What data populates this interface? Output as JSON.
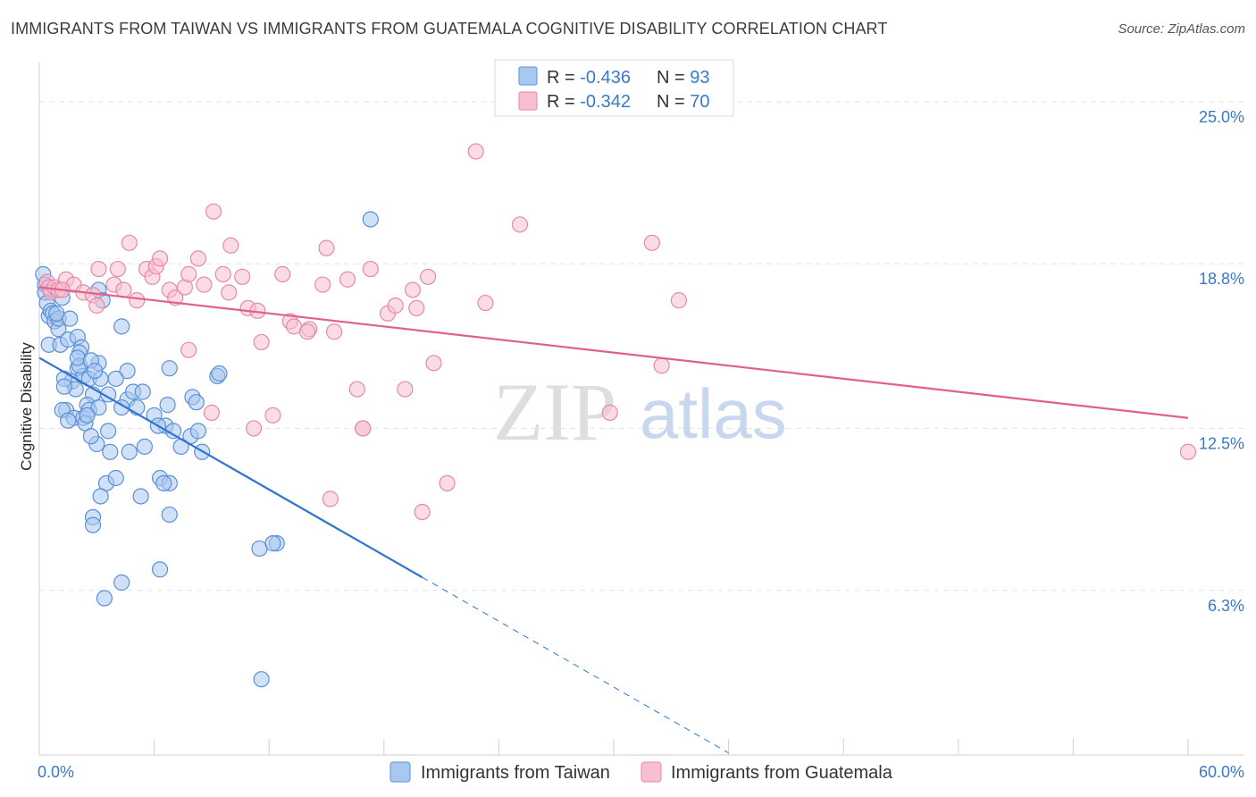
{
  "header": {
    "title": "IMMIGRANTS FROM TAIWAN VS IMMIGRANTS FROM GUATEMALA COGNITIVE DISABILITY CORRELATION CHART",
    "source": "Source: ZipAtlas.com"
  },
  "watermark": {
    "zip": "ZIP",
    "atlas": "atlas"
  },
  "colors": {
    "taiwan_fill": "#a9c8f0",
    "taiwan_stroke": "#5b8fd6",
    "taiwan_line": "#2f74d0",
    "guatemala_fill": "#f7bfd0",
    "guatemala_stroke": "#e58aa6",
    "guatemala_line": "#e0608a",
    "tick_text": "#3a78c9",
    "grid": "#e4e4e4"
  },
  "legend_top": {
    "rows": [
      {
        "r_label": "R = ",
        "r_value": "-0.436",
        "n_label": "N = ",
        "n_value": "93"
      },
      {
        "r_label": "R = ",
        "r_value": "-0.342",
        "n_label": "N = ",
        "n_value": "70"
      }
    ]
  },
  "chart_data": {
    "type": "scatter",
    "title": "IMMIGRANTS FROM TAIWAN VS IMMIGRANTS FROM GUATEMALA COGNITIVE DISABILITY CORRELATION CHART",
    "xlabel": "",
    "ylabel": "Cognitive Disability",
    "xlim": [
      0,
      60
    ],
    "ylim": [
      0,
      26.5
    ],
    "x_ticks": [
      {
        "value": 0,
        "label": "0.0%"
      },
      {
        "value": 60,
        "label": "60.0%"
      }
    ],
    "y_ticks": [
      {
        "value": 6.3,
        "label": "6.3%"
      },
      {
        "value": 12.5,
        "label": "12.5%"
      },
      {
        "value": 18.8,
        "label": "18.8%"
      },
      {
        "value": 25.0,
        "label": "25.0%"
      }
    ],
    "grid": true,
    "legend_position": "bottom",
    "series": [
      {
        "name": "Immigrants from Taiwan",
        "R": -0.436,
        "N": 93,
        "trend": {
          "x0": 0.0,
          "y0": 15.2,
          "x1": 20.0,
          "y1": 6.8,
          "dash_to_x": 36.0
        },
        "points": [
          [
            0.2,
            18.4
          ],
          [
            0.3,
            18.0
          ],
          [
            0.3,
            17.7
          ],
          [
            0.4,
            17.3
          ],
          [
            0.5,
            16.8
          ],
          [
            0.6,
            17.0
          ],
          [
            0.7,
            16.9
          ],
          [
            0.8,
            16.6
          ],
          [
            1.0,
            16.3
          ],
          [
            1.0,
            16.7
          ],
          [
            0.5,
            15.7
          ],
          [
            1.1,
            15.7
          ],
          [
            1.5,
            15.9
          ],
          [
            2.0,
            16.0
          ],
          [
            2.2,
            15.6
          ],
          [
            2.1,
            15.4
          ],
          [
            2.0,
            14.8
          ],
          [
            1.7,
            14.3
          ],
          [
            1.3,
            14.4
          ],
          [
            2.3,
            14.5
          ],
          [
            1.9,
            14.0
          ],
          [
            2.8,
            13.8
          ],
          [
            2.6,
            14.4
          ],
          [
            3.2,
            14.4
          ],
          [
            2.5,
            13.4
          ],
          [
            1.4,
            13.2
          ],
          [
            1.8,
            12.9
          ],
          [
            2.3,
            12.9
          ],
          [
            2.6,
            13.2
          ],
          [
            3.1,
            13.3
          ],
          [
            2.4,
            12.7
          ],
          [
            1.2,
            13.2
          ],
          [
            3.6,
            13.8
          ],
          [
            4.6,
            13.6
          ],
          [
            4.9,
            13.9
          ],
          [
            4.6,
            14.7
          ],
          [
            4.0,
            14.4
          ],
          [
            2.1,
            14.9
          ],
          [
            3.1,
            15.0
          ],
          [
            3.1,
            17.8
          ],
          [
            4.3,
            16.4
          ],
          [
            4.3,
            13.3
          ],
          [
            5.1,
            13.3
          ],
          [
            5.4,
            13.9
          ],
          [
            6.0,
            13.0
          ],
          [
            6.7,
            13.4
          ],
          [
            6.6,
            12.6
          ],
          [
            7.0,
            12.4
          ],
          [
            7.9,
            12.2
          ],
          [
            8.3,
            12.4
          ],
          [
            8.5,
            11.6
          ],
          [
            7.4,
            11.8
          ],
          [
            6.2,
            12.6
          ],
          [
            5.5,
            11.8
          ],
          [
            3.0,
            11.9
          ],
          [
            2.7,
            12.2
          ],
          [
            3.6,
            12.4
          ],
          [
            1.5,
            12.8
          ],
          [
            3.7,
            11.6
          ],
          [
            4.7,
            11.6
          ],
          [
            3.5,
            10.4
          ],
          [
            4.0,
            10.6
          ],
          [
            6.3,
            10.6
          ],
          [
            6.8,
            10.4
          ],
          [
            6.5,
            10.4
          ],
          [
            3.2,
            9.9
          ],
          [
            5.3,
            9.9
          ],
          [
            2.8,
            9.1
          ],
          [
            2.8,
            8.8
          ],
          [
            6.8,
            9.2
          ],
          [
            11.5,
            7.9
          ],
          [
            12.4,
            8.1
          ],
          [
            12.2,
            8.1
          ],
          [
            6.3,
            7.1
          ],
          [
            4.3,
            6.6
          ],
          [
            3.4,
            6.0
          ],
          [
            9.3,
            14.5
          ],
          [
            9.4,
            14.6
          ],
          [
            8.0,
            13.7
          ],
          [
            8.2,
            13.5
          ],
          [
            0.9,
            16.9
          ],
          [
            1.6,
            16.7
          ],
          [
            0.6,
            17.8
          ],
          [
            1.2,
            17.5
          ],
          [
            2.0,
            15.2
          ],
          [
            2.7,
            15.1
          ],
          [
            3.3,
            17.4
          ],
          [
            2.9,
            14.7
          ],
          [
            1.3,
            14.1
          ],
          [
            2.5,
            13.0
          ],
          [
            11.6,
            2.9
          ],
          [
            17.3,
            20.5
          ],
          [
            6.8,
            14.8
          ]
        ]
      },
      {
        "name": "Immigrants from Guatemala",
        "R": -0.342,
        "N": 70,
        "trend": {
          "x0": 0.0,
          "y0": 17.9,
          "x1": 60.0,
          "y1": 12.9
        },
        "points": [
          [
            0.4,
            18.1
          ],
          [
            0.5,
            17.9
          ],
          [
            0.6,
            17.7
          ],
          [
            0.8,
            17.9
          ],
          [
            1.0,
            17.8
          ],
          [
            1.4,
            18.2
          ],
          [
            1.8,
            18.0
          ],
          [
            2.3,
            17.7
          ],
          [
            2.8,
            17.6
          ],
          [
            3.0,
            17.2
          ],
          [
            3.1,
            18.6
          ],
          [
            3.9,
            18.0
          ],
          [
            4.1,
            18.6
          ],
          [
            4.4,
            17.8
          ],
          [
            4.7,
            19.6
          ],
          [
            5.1,
            17.4
          ],
          [
            5.6,
            18.6
          ],
          [
            5.9,
            18.3
          ],
          [
            6.1,
            18.7
          ],
          [
            6.3,
            19.0
          ],
          [
            6.8,
            17.8
          ],
          [
            7.1,
            17.5
          ],
          [
            7.6,
            17.9
          ],
          [
            7.8,
            18.4
          ],
          [
            8.3,
            19.0
          ],
          [
            8.6,
            18.0
          ],
          [
            9.1,
            20.8
          ],
          [
            9.6,
            18.4
          ],
          [
            9.9,
            17.7
          ],
          [
            10.0,
            19.5
          ],
          [
            10.6,
            18.3
          ],
          [
            10.9,
            17.1
          ],
          [
            11.4,
            17.0
          ],
          [
            11.6,
            15.8
          ],
          [
            12.2,
            13.0
          ],
          [
            12.7,
            18.4
          ],
          [
            13.1,
            16.6
          ],
          [
            13.3,
            16.4
          ],
          [
            14.1,
            16.3
          ],
          [
            14.8,
            18.0
          ],
          [
            15.0,
            19.4
          ],
          [
            15.4,
            16.2
          ],
          [
            16.1,
            18.2
          ],
          [
            16.6,
            14.0
          ],
          [
            16.9,
            12.5
          ],
          [
            17.3,
            18.6
          ],
          [
            18.2,
            16.9
          ],
          [
            18.6,
            17.2
          ],
          [
            19.5,
            17.8
          ],
          [
            19.1,
            14.0
          ],
          [
            19.7,
            17.1
          ],
          [
            20.3,
            18.3
          ],
          [
            20.6,
            15.0
          ],
          [
            21.3,
            10.4
          ],
          [
            22.8,
            23.1
          ],
          [
            23.3,
            17.3
          ],
          [
            25.1,
            20.3
          ],
          [
            29.8,
            13.1
          ],
          [
            32.0,
            19.6
          ],
          [
            32.5,
            14.9
          ],
          [
            33.4,
            17.4
          ],
          [
            14.0,
            16.2
          ],
          [
            9.0,
            13.1
          ],
          [
            7.8,
            15.5
          ],
          [
            11.2,
            12.5
          ],
          [
            15.2,
            9.8
          ],
          [
            20.0,
            9.3
          ],
          [
            16.9,
            12.5
          ],
          [
            60.0,
            11.6
          ],
          [
            1.2,
            17.8
          ]
        ]
      }
    ]
  },
  "legend_bottom": {
    "items": [
      {
        "label": "Immigrants from Taiwan"
      },
      {
        "label": "Immigrants from Guatemala"
      }
    ]
  }
}
